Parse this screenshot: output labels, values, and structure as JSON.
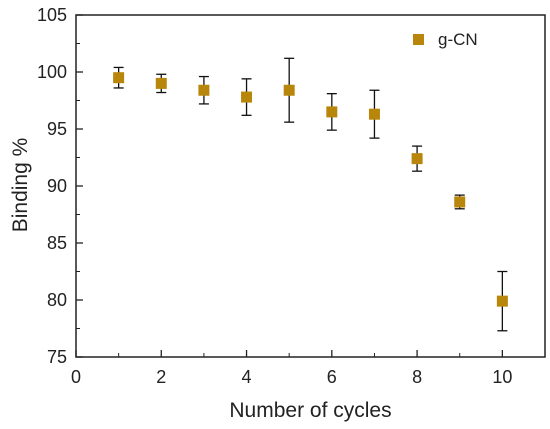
{
  "chart_data": {
    "type": "scatter",
    "title": "",
    "xlabel": "Number of cycles",
    "ylabel": "Binding %",
    "xlim": [
      0,
      11
    ],
    "ylim": [
      75,
      105
    ],
    "x_ticks": [
      0,
      2,
      4,
      6,
      8,
      10
    ],
    "y_ticks": [
      75,
      80,
      85,
      90,
      95,
      100,
      105
    ],
    "grid": false,
    "legend_position": "top-right",
    "series": [
      {
        "name": "g-CN",
        "color": "#b8860b",
        "marker": "square",
        "x": [
          1,
          2,
          3,
          4,
          5,
          6,
          7,
          8,
          9,
          10
        ],
        "y": [
          99.5,
          99.0,
          98.4,
          97.8,
          98.4,
          96.5,
          96.3,
          92.4,
          88.6,
          79.9
        ],
        "error": [
          0.9,
          0.8,
          1.2,
          1.6,
          2.8,
          1.6,
          2.1,
          1.1,
          0.6,
          2.6
        ]
      }
    ]
  }
}
